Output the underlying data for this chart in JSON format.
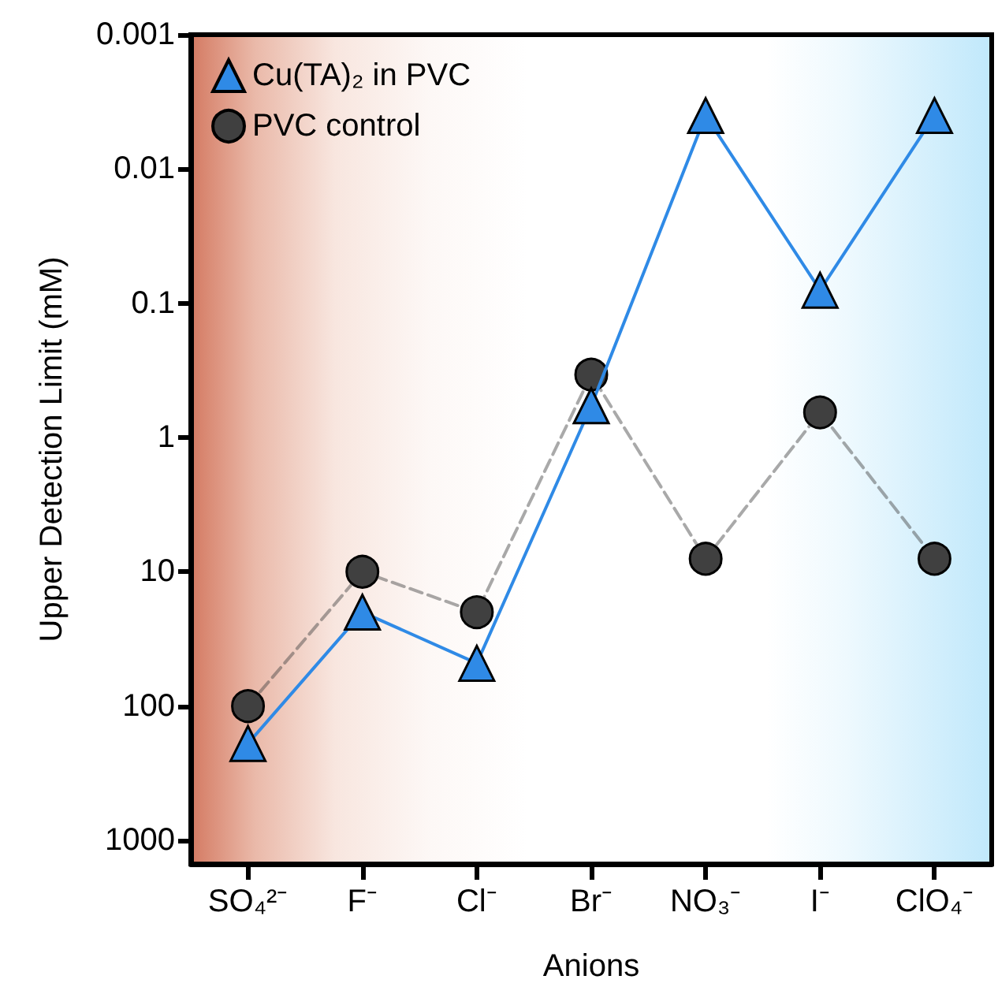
{
  "chart_data": {
    "type": "line",
    "xlabel": "Anions",
    "ylabel": "Upper Detection Limit (mM)",
    "categories": [
      "SO₄²⁻",
      "F⁻",
      "Cl⁻",
      "Br⁻",
      "NO₃⁻",
      "I⁻",
      "ClO₄⁻"
    ],
    "series": [
      {
        "name": "Cu(TA)₂ in PVC",
        "color": "#2f8ae6",
        "marker": "triangle",
        "line_style": "solid",
        "values": [
          190,
          20,
          48,
          0.58,
          0.004,
          0.08,
          0.004
        ]
      },
      {
        "name": "PVC control",
        "color": "#404040",
        "marker": "circle",
        "line_style": "dashed",
        "values": [
          100,
          10,
          20,
          0.34,
          8,
          0.65,
          8
        ]
      }
    ],
    "log": "y",
    "ylim": [
      1500,
      0.001
    ],
    "yticks": [
      0.001,
      0.01,
      0.1,
      1,
      10,
      100,
      1000
    ],
    "grid": false,
    "legend": "top left"
  }
}
